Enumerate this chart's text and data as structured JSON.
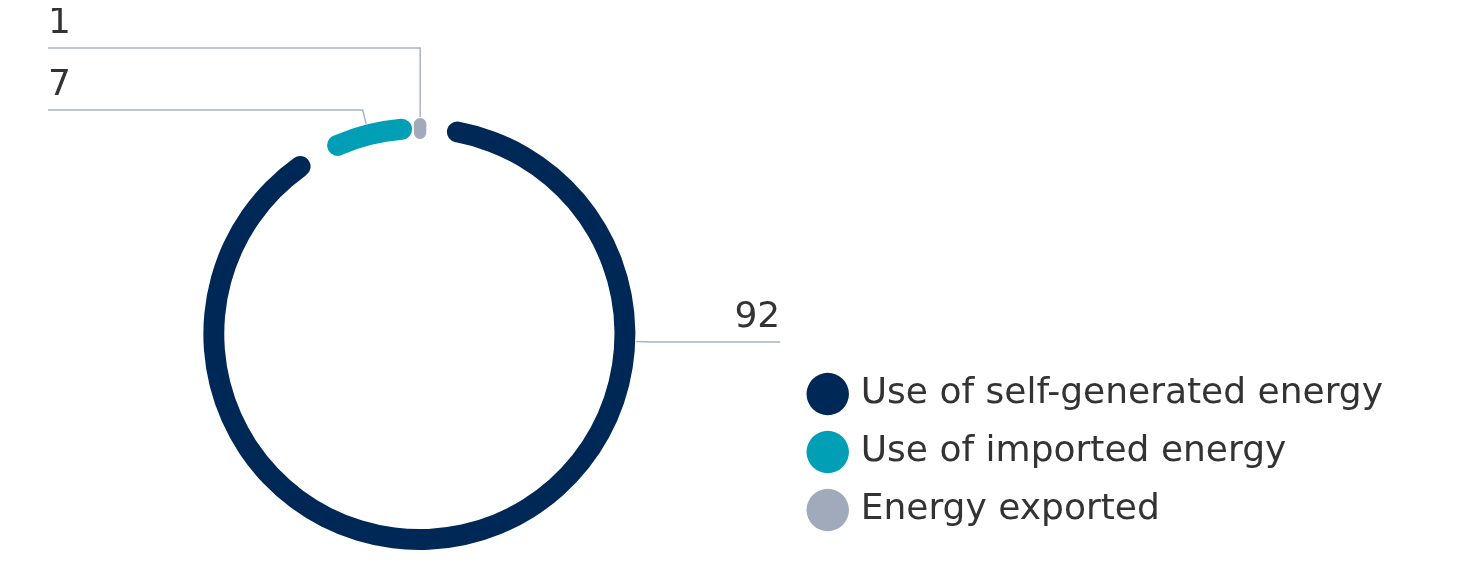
{
  "chart_data": {
    "type": "donut",
    "categories": [
      "Use of self-generated energy",
      "Use of imported energy",
      "Energy exported"
    ],
    "values": [
      92,
      7,
      1
    ],
    "colors": [
      "#002856",
      "#009fb5",
      "#a0aabb"
    ],
    "data_labels": true,
    "legend": "bottom right"
  }
}
